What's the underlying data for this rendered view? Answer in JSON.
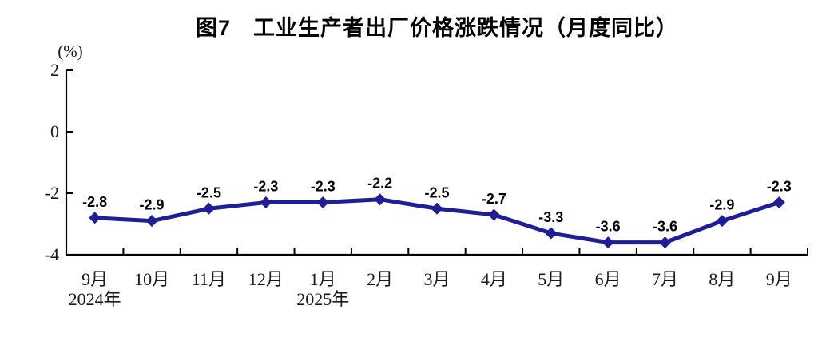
{
  "chart_data": {
    "type": "line",
    "title": "图7　工业生产者出厂价格涨跌情况（月度同比）",
    "ylabel": "(%)",
    "categories": [
      "9月",
      "10月",
      "11月",
      "12月",
      "1月",
      "2月",
      "3月",
      "4月",
      "5月",
      "6月",
      "7月",
      "8月",
      "9月"
    ],
    "series": [
      {
        "name": "工业生产者出厂价格月度同比",
        "values": [
          -2.8,
          -2.9,
          -2.5,
          -2.3,
          -2.3,
          -2.2,
          -2.5,
          -2.7,
          -3.3,
          -3.6,
          -3.6,
          -2.9,
          -2.3
        ]
      }
    ],
    "year_annotations": [
      {
        "index": 0,
        "label": "2024年"
      },
      {
        "index": 4,
        "label": "2025年"
      }
    ],
    "ylim": [
      -4,
      2
    ],
    "yticks": [
      2,
      0,
      -2,
      -4
    ],
    "grid": false,
    "legend": "none",
    "marker": "diamond",
    "line_color": "#1e1e96",
    "axis_color": "#000000",
    "label_color": "#000000"
  }
}
